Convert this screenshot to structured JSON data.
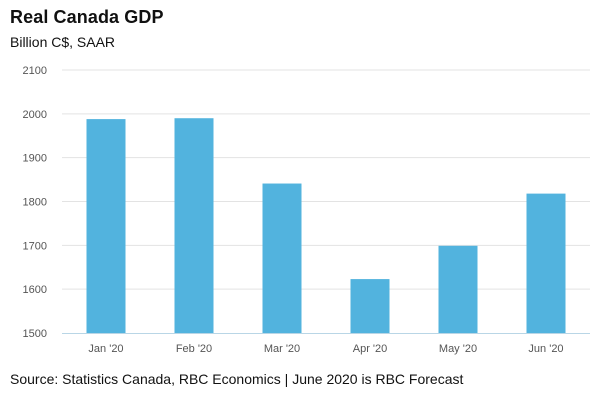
{
  "chart_data": {
    "type": "bar",
    "title": "Real Canada GDP",
    "subtitle": "Billion C$, SAAR",
    "categories": [
      "Jan '20",
      "Feb '20",
      "Mar '20",
      "Apr '20",
      "May '20",
      "Jun '20"
    ],
    "values": [
      1988,
      1990,
      1841,
      1623,
      1699,
      1818
    ],
    "ylim": [
      1500,
      2100
    ],
    "yticks": [
      1500,
      1600,
      1700,
      1800,
      1900,
      2000,
      2100
    ],
    "xlabel": "",
    "ylabel": "",
    "grid": true,
    "bar_color": "#52b3de",
    "source": "Source: Statistics Canada, RBC Economics | June 2020 is RBC Forecast"
  }
}
